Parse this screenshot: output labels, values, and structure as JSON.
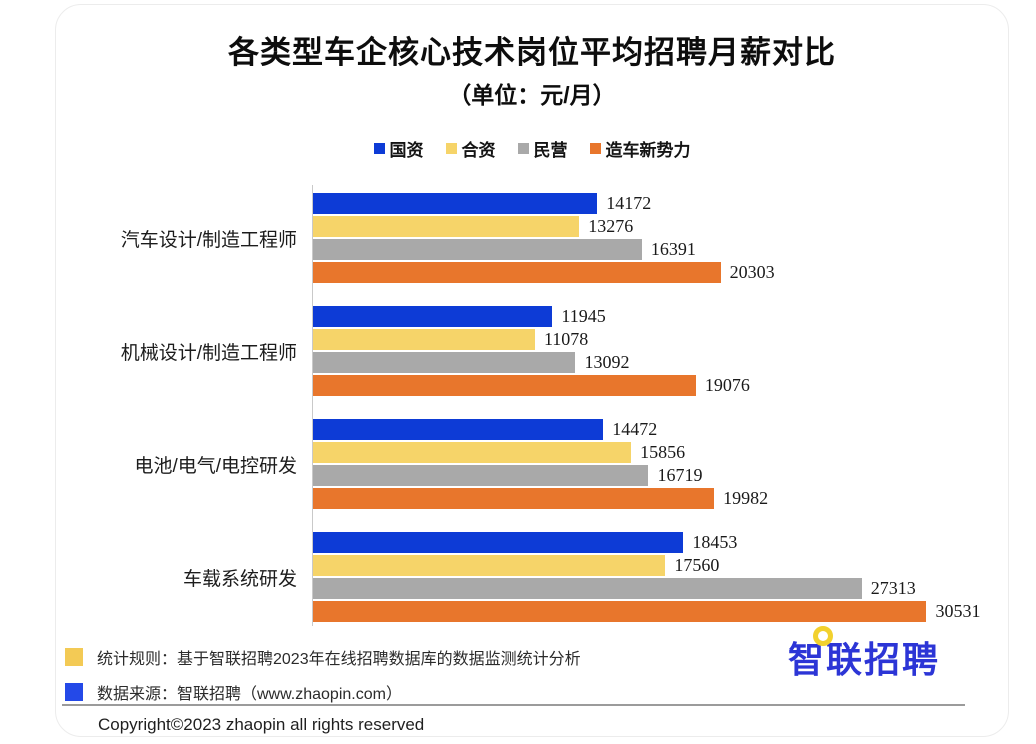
{
  "header": {
    "title": "各类型车企核心技术岗位平均招聘月薪对比",
    "subtitle": "（单位：元/月）"
  },
  "chart_data": {
    "type": "bar",
    "orientation": "horizontal",
    "title": "各类型车企核心技术岗位平均招聘月薪对比",
    "unit": "元/月",
    "categories": [
      "汽车设计/制造工程师",
      "机械设计/制造工程师",
      "电池/电气/电控研发",
      "车载系统研发"
    ],
    "series": [
      {
        "name": "国资",
        "color": "#0d3bd6",
        "values": [
          14172,
          11945,
          14472,
          18453
        ]
      },
      {
        "name": "合资",
        "color": "#f6d469",
        "values": [
          13276,
          11078,
          15856,
          17560
        ]
      },
      {
        "name": "民营",
        "color": "#a9a9a9",
        "values": [
          16391,
          13092,
          16719,
          27313
        ]
      },
      {
        "name": "造车新势力",
        "color": "#e8762c",
        "values": [
          20303,
          19076,
          19982,
          30531
        ]
      }
    ],
    "xlim": [
      0,
      31600
    ],
    "value_labels": true,
    "legend_position": "top",
    "grid": false
  },
  "footnotes": [
    {
      "marker_color": "#f3ca55",
      "text": "统计规则：基于智联招聘2023年在线招聘数据库的数据监测统计分析"
    },
    {
      "marker_color": "#2449e8",
      "text": "数据来源：智联招聘（www.zhaopin.com）"
    }
  ],
  "logo": {
    "text": "智联招聘",
    "color": "#2c35d6",
    "dot_color": "#f2d12e"
  },
  "footer": {
    "copyright": "Copyright©2023 zhaopin all rights reserved"
  }
}
